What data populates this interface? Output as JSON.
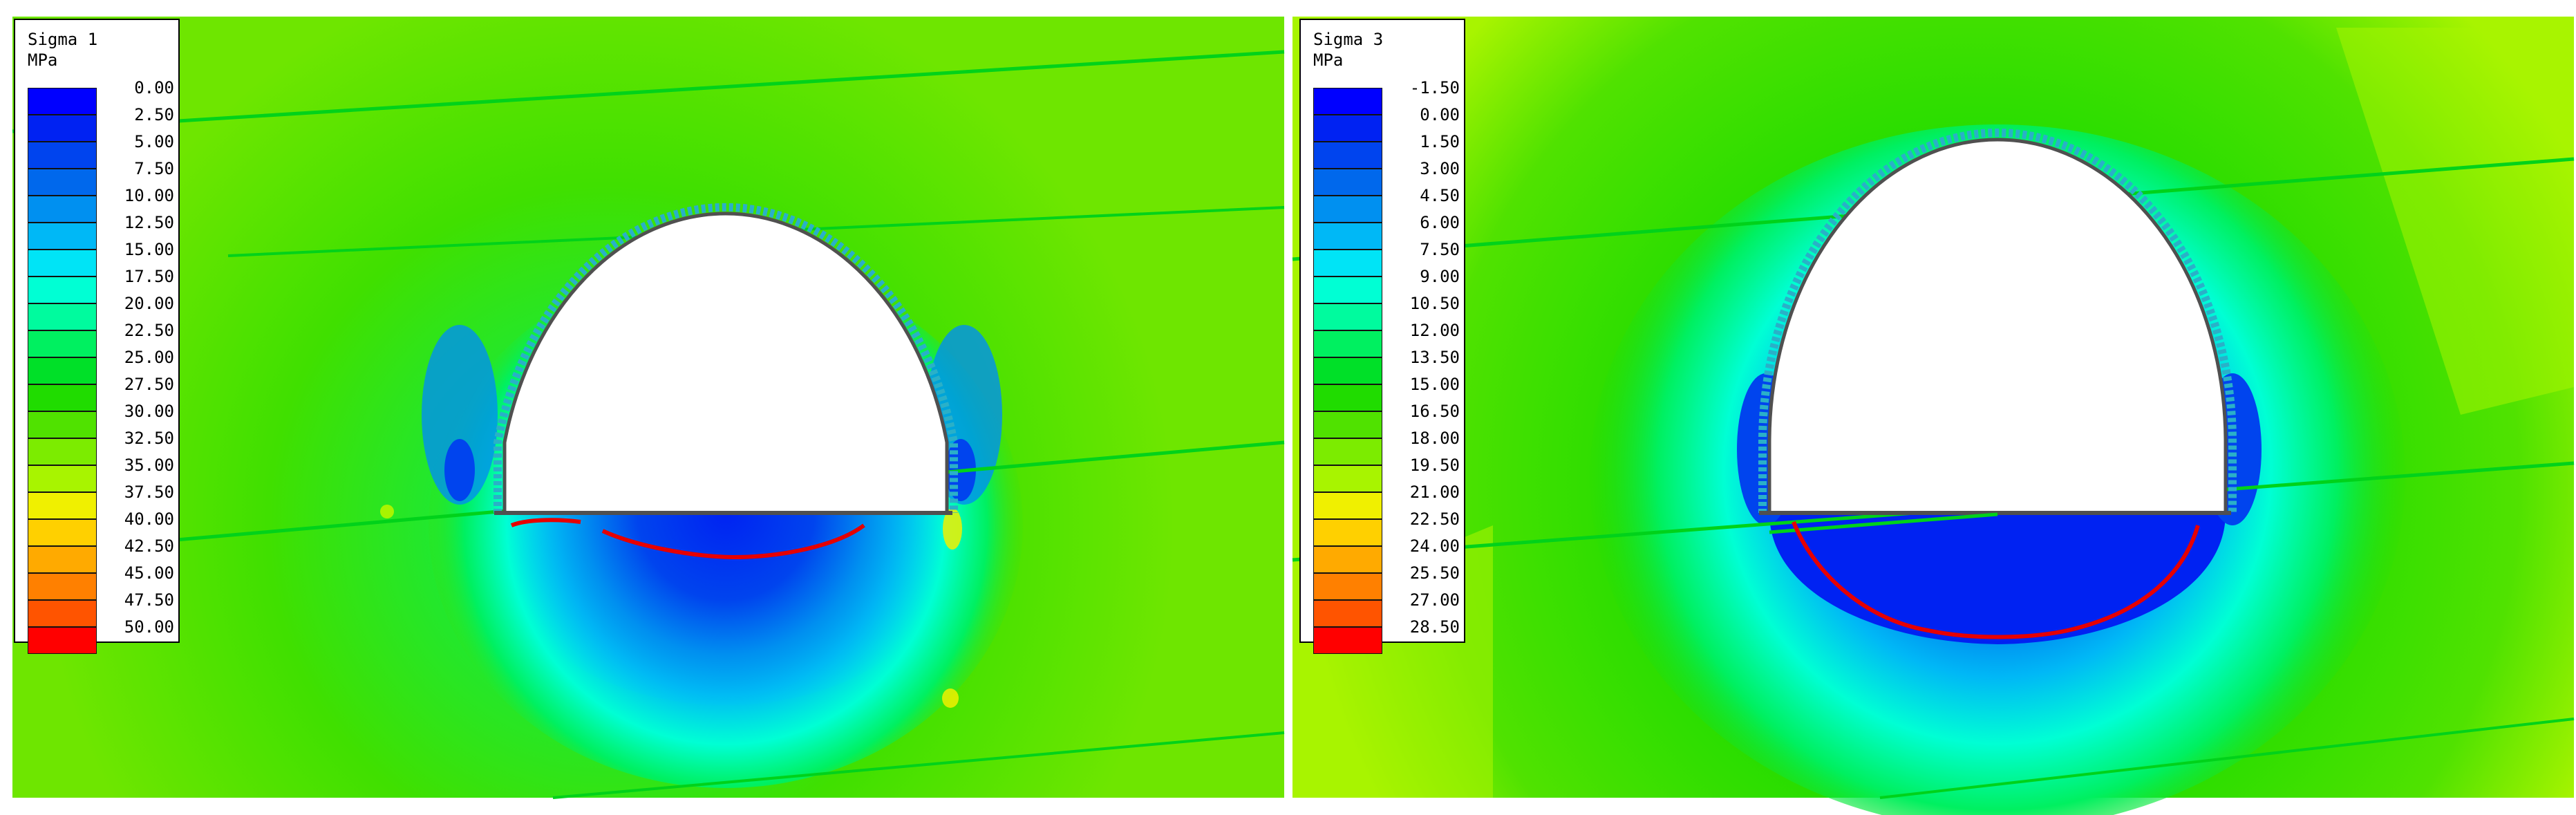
{
  "panels": [
    {
      "id": "sigma1",
      "legend_title": "Sigma 1",
      "legend_unit": "MPa",
      "levels": [
        "0.00",
        "2.50",
        "5.00",
        "7.50",
        "10.00",
        "12.50",
        "15.00",
        "17.50",
        "20.00",
        "22.50",
        "25.00",
        "27.50",
        "30.00",
        "32.50",
        "35.00",
        "37.50",
        "40.00",
        "42.50",
        "45.00",
        "47.50",
        "50.00"
      ],
      "background_color": "#5fe800",
      "joint_color": "#00d21a"
    },
    {
      "id": "sigma3",
      "legend_title": "Sigma 3",
      "legend_unit": "MPa",
      "levels": [
        "-1.50",
        "0.00",
        "1.50",
        "3.00",
        "4.50",
        "6.00",
        "7.50",
        "9.00",
        "10.50",
        "12.00",
        "13.50",
        "15.00",
        "16.50",
        "18.00",
        "19.50",
        "21.00",
        "22.50",
        "24.00",
        "25.50",
        "27.00",
        "28.50"
      ],
      "background_color": "#5fe800",
      "joint_color": "#00d21a"
    }
  ],
  "colors": {
    "scale": [
      "#0000ff",
      "#0022f2",
      "#0044ee",
      "#0068ec",
      "#0090f0",
      "#00b8f6",
      "#00e4f6",
      "#00ffd4",
      "#00fb9e",
      "#00f060",
      "#00e028",
      "#20dc00",
      "#50e200",
      "#7cec00",
      "#a8f400",
      "#f0f000",
      "#ffd000",
      "#ffaa00",
      "#ff8000",
      "#ff5400",
      "#ff0000"
    ],
    "yield_line": "#e60000",
    "excavation": "#ffffff",
    "liner": "#2ab0c8",
    "excavation_outline": "#505050"
  }
}
